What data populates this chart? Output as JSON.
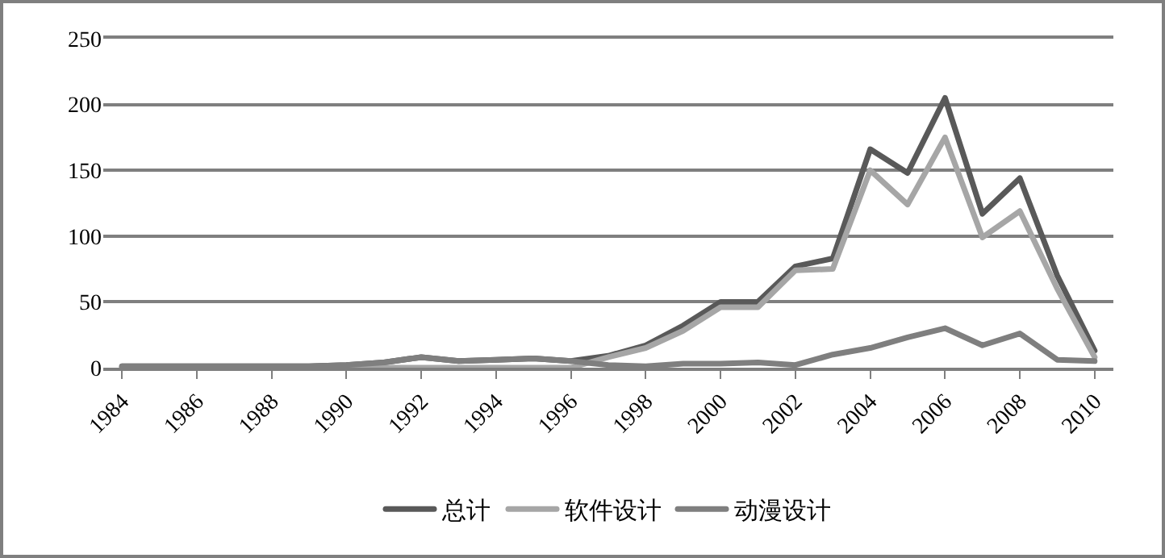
{
  "chart_data": {
    "type": "line",
    "categories": [
      "1984",
      null,
      "1986",
      null,
      "1988",
      null,
      "1990",
      null,
      "1992",
      null,
      "1994",
      null,
      "1996",
      null,
      "1998",
      null,
      "2000",
      null,
      "2002",
      null,
      "2004",
      null,
      "2006",
      null,
      "2008",
      null,
      "2010"
    ],
    "series": [
      {
        "name": "总计",
        "color": "#595959",
        "values": [
          1,
          1,
          1,
          1,
          1,
          1,
          2,
          4,
          8,
          5,
          6,
          7,
          5,
          9,
          17,
          32,
          50,
          50,
          77,
          83,
          166,
          148,
          205,
          117,
          144,
          70,
          13
        ]
      },
      {
        "name": "软件设计",
        "color": "#a6a6a6",
        "values": [
          0,
          0,
          0,
          0,
          0,
          0,
          0,
          0,
          0,
          0,
          0,
          0,
          0,
          8,
          15,
          28,
          46,
          46,
          74,
          75,
          150,
          124,
          175,
          99,
          119,
          60,
          8
        ]
      },
      {
        "name": "动漫设计",
        "color": "#7f7f7f",
        "values": [
          1,
          1,
          1,
          1,
          1,
          1,
          2,
          4,
          8,
          5,
          6,
          7,
          5,
          2,
          1,
          3,
          3,
          4,
          2,
          10,
          15,
          23,
          30,
          17,
          26,
          6,
          5
        ]
      }
    ],
    "ylim": [
      0,
      250
    ],
    "yticks": [
      0,
      50,
      100,
      150,
      200,
      250
    ],
    "grid": "y",
    "legend": "bottom",
    "marker": "none",
    "line_style": "solid"
  }
}
